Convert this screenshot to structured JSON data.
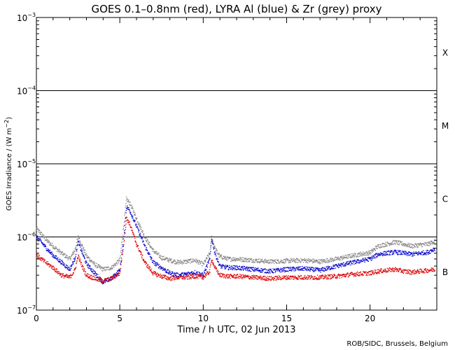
{
  "chart_data": {
    "type": "scatter",
    "title": "GOES 0.1–0.8nm (red), LYRA Al (blue) & Zr (grey) proxy",
    "xlabel": "Time / h UTC, 02 Jun 2013",
    "ylabel_main": "GOES Irradiance / (W m",
    "ylabel_exp": "−2",
    "ylabel_close": ")",
    "credit": "ROB/SIDC, Brussels, Belgium",
    "xlim": [
      0,
      24
    ],
    "ylim": [
      1e-07,
      0.001
    ],
    "y_scale": "log",
    "x_ticks": [
      {
        "value": 0,
        "label": "0"
      },
      {
        "value": 5,
        "label": "5"
      },
      {
        "value": 10,
        "label": "10"
      },
      {
        "value": 15,
        "label": "15"
      },
      {
        "value": 20,
        "label": "20"
      }
    ],
    "y_ticks": [
      {
        "exp": -7,
        "base": "10",
        "sup": "−7"
      },
      {
        "exp": -6,
        "base": "10",
        "sup": "−6"
      },
      {
        "exp": -5,
        "base": "10",
        "sup": "−5"
      },
      {
        "exp": -4,
        "base": "10",
        "sup": "−4"
      },
      {
        "exp": -3,
        "base": "10",
        "sup": "−3"
      }
    ],
    "flare_classes": [
      {
        "label": "B",
        "center": 3.3e-07
      },
      {
        "label": "C",
        "center": 3.3e-06
      },
      {
        "label": "M",
        "center": 3.3e-05
      },
      {
        "label": "X",
        "center": 0.00033
      }
    ],
    "threshold_lines": [
      1e-06,
      1e-05,
      0.0001
    ],
    "series": [
      {
        "name": "Zr (grey)",
        "color": "#888888",
        "points": [
          [
            0,
            1.3e-06
          ],
          [
            0.3,
            1.1e-06
          ],
          [
            0.6,
            9e-07
          ],
          [
            1.0,
            7.5e-07
          ],
          [
            1.5,
            6e-07
          ],
          [
            2.0,
            5e-07
          ],
          [
            2.3,
            6.5e-07
          ],
          [
            2.5,
            1e-06
          ],
          [
            2.7,
            8e-07
          ],
          [
            3.0,
            5.5e-07
          ],
          [
            3.5,
            4.2e-07
          ],
          [
            4.0,
            3.6e-07
          ],
          [
            4.5,
            3.8e-07
          ],
          [
            5.0,
            4.8e-07
          ],
          [
            5.2,
            1.2e-06
          ],
          [
            5.4,
            3.3e-06
          ],
          [
            5.6,
            2.9e-06
          ],
          [
            6.0,
            1.8e-06
          ],
          [
            6.5,
            1e-06
          ],
          [
            7.0,
            6.5e-07
          ],
          [
            7.5,
            5.2e-07
          ],
          [
            8.0,
            4.8e-07
          ],
          [
            8.5,
            4.5e-07
          ],
          [
            9.0,
            4.6e-07
          ],
          [
            9.5,
            4.8e-07
          ],
          [
            10.0,
            4.2e-07
          ],
          [
            10.4,
            6e-07
          ],
          [
            10.5,
            1e-06
          ],
          [
            10.7,
            7e-07
          ],
          [
            11.0,
            5.4e-07
          ],
          [
            11.5,
            5e-07
          ],
          [
            12.0,
            5e-07
          ],
          [
            13.0,
            4.8e-07
          ],
          [
            14.0,
            4.6e-07
          ],
          [
            15.0,
            4.7e-07
          ],
          [
            16.0,
            4.8e-07
          ],
          [
            17.0,
            4.6e-07
          ],
          [
            18.0,
            5e-07
          ],
          [
            19.0,
            5.6e-07
          ],
          [
            20.0,
            6.1e-07
          ],
          [
            20.5,
            7.5e-07
          ],
          [
            21.0,
            8e-07
          ],
          [
            21.5,
            8.5e-07
          ],
          [
            22.0,
            8e-07
          ],
          [
            22.5,
            7.5e-07
          ],
          [
            23.0,
            7.8e-07
          ],
          [
            23.5,
            8e-07
          ],
          [
            23.9,
            8.8e-07
          ]
        ]
      },
      {
        "name": "LYRA Al (blue)",
        "color": "#0000cc",
        "points": [
          [
            0,
            1e-06
          ],
          [
            0.3,
            8.5e-07
          ],
          [
            0.6,
            7e-07
          ],
          [
            1.0,
            5.6e-07
          ],
          [
            1.5,
            4.5e-07
          ],
          [
            2.0,
            3.6e-07
          ],
          [
            2.3,
            5e-07
          ],
          [
            2.5,
            8.5e-07
          ],
          [
            2.7,
            6.5e-07
          ],
          [
            3.0,
            4.3e-07
          ],
          [
            3.5,
            3.2e-07
          ],
          [
            4.0,
            2.4e-07
          ],
          [
            4.5,
            2.7e-07
          ],
          [
            5.0,
            3.5e-07
          ],
          [
            5.2,
            8e-07
          ],
          [
            5.4,
            2.6e-06
          ],
          [
            5.6,
            2.3e-06
          ],
          [
            6.0,
            1.4e-06
          ],
          [
            6.5,
            7.5e-07
          ],
          [
            7.0,
            4.5e-07
          ],
          [
            7.5,
            3.8e-07
          ],
          [
            8.0,
            3.2e-07
          ],
          [
            8.5,
            3e-07
          ],
          [
            9.0,
            3.1e-07
          ],
          [
            9.5,
            3.3e-07
          ],
          [
            10.0,
            3e-07
          ],
          [
            10.4,
            5e-07
          ],
          [
            10.5,
            9.5e-07
          ],
          [
            10.7,
            6e-07
          ],
          [
            11.0,
            4e-07
          ],
          [
            11.5,
            3.8e-07
          ],
          [
            12.0,
            3.8e-07
          ],
          [
            13.0,
            3.6e-07
          ],
          [
            14.0,
            3.4e-07
          ],
          [
            15.0,
            3.6e-07
          ],
          [
            16.0,
            3.7e-07
          ],
          [
            17.0,
            3.5e-07
          ],
          [
            18.0,
            4e-07
          ],
          [
            19.0,
            4.5e-07
          ],
          [
            20.0,
            5e-07
          ],
          [
            20.5,
            5.8e-07
          ],
          [
            21.0,
            6e-07
          ],
          [
            21.5,
            6.2e-07
          ],
          [
            22.0,
            6e-07
          ],
          [
            22.5,
            5.8e-07
          ],
          [
            23.0,
            6e-07
          ],
          [
            23.5,
            6.2e-07
          ],
          [
            23.9,
            7e-07
          ]
        ]
      },
      {
        "name": "GOES 0.1–0.8nm (red)",
        "color": "#dd0000",
        "points": [
          [
            0,
            5.6e-07
          ],
          [
            0.3,
            5e-07
          ],
          [
            0.6,
            4.4e-07
          ],
          [
            1.0,
            3.8e-07
          ],
          [
            1.5,
            3e-07
          ],
          [
            2.0,
            2.8e-07
          ],
          [
            2.3,
            3.5e-07
          ],
          [
            2.5,
            5.5e-07
          ],
          [
            2.7,
            4.2e-07
          ],
          [
            3.0,
            3e-07
          ],
          [
            3.5,
            2.7e-07
          ],
          [
            4.0,
            2.5e-07
          ],
          [
            4.5,
            2.7e-07
          ],
          [
            5.0,
            3.2e-07
          ],
          [
            5.2,
            7e-07
          ],
          [
            5.4,
            1.8e-06
          ],
          [
            5.6,
            1.5e-06
          ],
          [
            6.0,
            8e-07
          ],
          [
            6.5,
            4.5e-07
          ],
          [
            7.0,
            3.2e-07
          ],
          [
            7.5,
            2.9e-07
          ],
          [
            8.0,
            2.7e-07
          ],
          [
            8.5,
            2.8e-07
          ],
          [
            9.0,
            2.8e-07
          ],
          [
            9.5,
            2.9e-07
          ],
          [
            10.0,
            2.8e-07
          ],
          [
            10.4,
            3.4e-07
          ],
          [
            10.5,
            5e-07
          ],
          [
            10.7,
            3.8e-07
          ],
          [
            11.0,
            3e-07
          ],
          [
            11.5,
            2.9e-07
          ],
          [
            12.0,
            2.9e-07
          ],
          [
            13.0,
            2.8e-07
          ],
          [
            14.0,
            2.7e-07
          ],
          [
            15.0,
            2.8e-07
          ],
          [
            16.0,
            2.8e-07
          ],
          [
            17.0,
            2.8e-07
          ],
          [
            18.0,
            2.9e-07
          ],
          [
            19.0,
            3.1e-07
          ],
          [
            20.0,
            3.2e-07
          ],
          [
            20.5,
            3.4e-07
          ],
          [
            21.0,
            3.5e-07
          ],
          [
            21.5,
            3.6e-07
          ],
          [
            22.0,
            3.4e-07
          ],
          [
            22.5,
            3.3e-07
          ],
          [
            23.0,
            3.4e-07
          ],
          [
            23.5,
            3.5e-07
          ],
          [
            23.9,
            3.6e-07
          ]
        ]
      }
    ]
  }
}
